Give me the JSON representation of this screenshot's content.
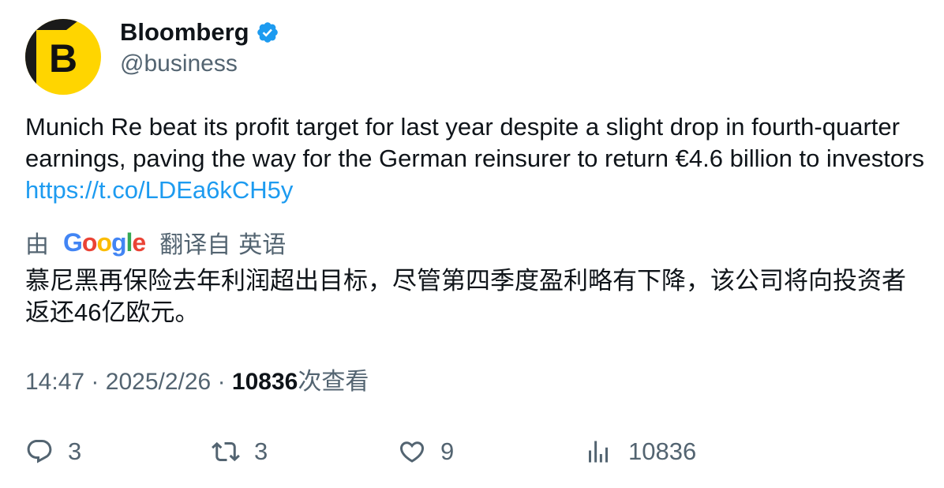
{
  "author": {
    "name": "Bloomberg",
    "handle": "@business",
    "avatar_letter": "B",
    "verified": true
  },
  "tweet": {
    "text": "Munich Re beat its profit target for last year despite a slight drop in fourth-quarter earnings, paving the way for the German reinsurer to return €4.6 billion to investors ",
    "link": "https://t.co/LDEa6kCH5y"
  },
  "translation": {
    "prefix": "由",
    "provider": "Google",
    "suffix": "翻译自",
    "source_language": "英语",
    "text": "慕尼黑再保险去年利润超出目标，尽管第四季度盈利略有下降，该公司将向投资者返还46亿欧元。"
  },
  "meta": {
    "time": "14:47",
    "separator": "·",
    "date": "2025/2/26",
    "views": "10836",
    "views_label": "次查看"
  },
  "actions": {
    "replies": "3",
    "retweets": "3",
    "likes": "9",
    "views": "10836"
  },
  "colors": {
    "link": "#1d9bf0",
    "secondary_text": "#536471",
    "primary_text": "#0f1419",
    "avatar_yellow": "#ffd500",
    "verified_blue": "#1d9bf0"
  },
  "icons": {
    "reply": "reply-icon",
    "retweet": "retweet-icon",
    "like": "heart-icon",
    "views": "views-icon",
    "verified": "verified-badge-icon"
  }
}
